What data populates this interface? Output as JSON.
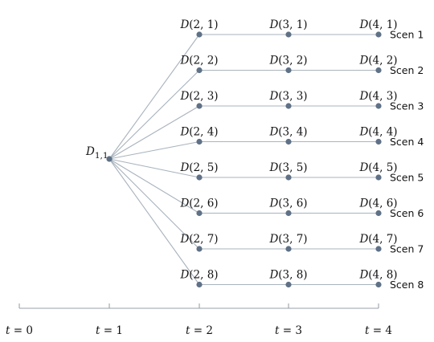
{
  "root": {
    "letter": "D",
    "subscript": "1,1"
  },
  "stages": [
    "2",
    "3",
    "4"
  ],
  "scenarios": [
    {
      "index": "1",
      "label": "Scen 1"
    },
    {
      "index": "2",
      "label": "Scen 2"
    },
    {
      "index": "3",
      "label": "Scen 3"
    },
    {
      "index": "4",
      "label": "Scen 4"
    },
    {
      "index": "5",
      "label": "Scen 5"
    },
    {
      "index": "6",
      "label": "Scen 6"
    },
    {
      "index": "7",
      "label": "Scen 7"
    },
    {
      "index": "8",
      "label": "Scen 8"
    }
  ],
  "time_axis": {
    "variable": "t",
    "ticks": [
      "0",
      "1",
      "2",
      "3",
      "4"
    ]
  },
  "colors": {
    "node": "#5f7186",
    "edge": "#a9b3bd",
    "axis": "#9aa1a8",
    "text": "#111111"
  }
}
